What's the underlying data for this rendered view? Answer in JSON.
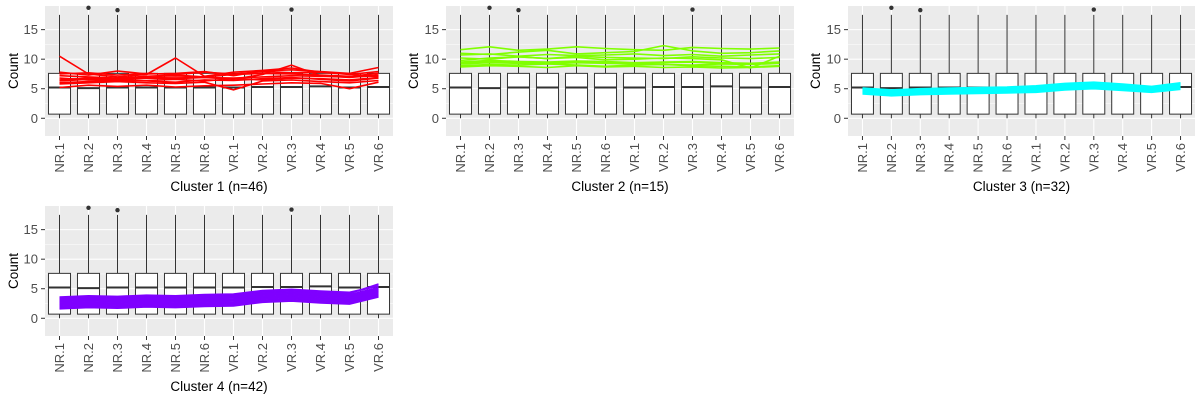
{
  "chart_data": {
    "type": "line",
    "categories": [
      "NR.1",
      "NR.2",
      "NR.3",
      "NR.4",
      "NR.5",
      "NR.6",
      "VR.1",
      "VR.2",
      "VR.3",
      "VR.4",
      "VR.5",
      "VR.6"
    ],
    "ylabel": "Count",
    "ylim": [
      -3,
      19
    ],
    "yticks": [
      0,
      5,
      10,
      15
    ],
    "grid": true,
    "boxes": [
      {
        "q1": 0.7,
        "median": 5.2,
        "q3": 7.6,
        "whisker_low": 0,
        "whisker_high": 17.5
      },
      {
        "q1": 0.7,
        "median": 5.1,
        "q3": 7.6,
        "whisker_low": 0,
        "whisker_high": 17.5,
        "outliers": [
          18.7
        ]
      },
      {
        "q1": 0.7,
        "median": 5.2,
        "q3": 7.6,
        "whisker_low": 0,
        "whisker_high": 17.5,
        "outliers": [
          18.3
        ]
      },
      {
        "q1": 0.7,
        "median": 5.2,
        "q3": 7.6,
        "whisker_low": 0,
        "whisker_high": 17.5
      },
      {
        "q1": 0.7,
        "median": 5.2,
        "q3": 7.6,
        "whisker_low": 0,
        "whisker_high": 17.5
      },
      {
        "q1": 0.7,
        "median": 5.2,
        "q3": 7.6,
        "whisker_low": 0,
        "whisker_high": 17.5
      },
      {
        "q1": 0.7,
        "median": 5.2,
        "q3": 7.6,
        "whisker_low": 0,
        "whisker_high": 17.5
      },
      {
        "q1": 0.7,
        "median": 5.3,
        "q3": 7.6,
        "whisker_low": 0,
        "whisker_high": 17.5
      },
      {
        "q1": 0.7,
        "median": 5.3,
        "q3": 7.6,
        "whisker_low": 0,
        "whisker_high": 17.5,
        "outliers": [
          18.4
        ]
      },
      {
        "q1": 0.7,
        "median": 5.4,
        "q3": 7.6,
        "whisker_low": 0,
        "whisker_high": 17.5
      },
      {
        "q1": 0.7,
        "median": 5.2,
        "q3": 7.6,
        "whisker_low": 0,
        "whisker_high": 17.5
      },
      {
        "q1": 0.7,
        "median": 5.3,
        "q3": 7.6,
        "whisker_low": 0,
        "whisker_high": 17.5
      }
    ],
    "panels": [
      {
        "xlabel": "Cluster 1 (n=46)",
        "color": "#ff0000",
        "series": [
          {
            "values": [
              6.5,
              6.8,
              6.7,
              6.9,
              7.0,
              6.9,
              6.8,
              7.0,
              7.2,
              7.1,
              7.0,
              7.2
            ]
          },
          {
            "values": [
              10.5,
              7.5,
              7.0,
              7.4,
              10.2,
              7.1,
              7.8,
              8.1,
              8.5,
              7.8,
              7.5,
              7.0
            ]
          },
          {
            "values": [
              5.2,
              5.6,
              5.4,
              5.6,
              5.3,
              5.5,
              5.6,
              5.8,
              6.0,
              5.9,
              5.0,
              6.1
            ]
          },
          {
            "values": [
              7.8,
              7.3,
              8.0,
              7.5,
              7.6,
              7.9,
              7.2,
              8.0,
              8.2,
              7.9,
              7.6,
              8.6
            ]
          },
          {
            "values": [
              6.0,
              6.2,
              6.4,
              6.3,
              6.1,
              6.5,
              6.4,
              6.7,
              6.9,
              6.6,
              6.3,
              6.8
            ]
          },
          {
            "values": [
              7.2,
              7.0,
              6.8,
              7.1,
              7.3,
              7.0,
              7.4,
              7.6,
              7.5,
              7.3,
              7.1,
              7.6
            ]
          },
          {
            "values": [
              5.8,
              6.0,
              6.2,
              6.0,
              5.9,
              6.1,
              4.8,
              6.3,
              6.5,
              6.2,
              6.0,
              6.4
            ]
          },
          {
            "values": [
              6.8,
              6.5,
              6.6,
              6.8,
              6.7,
              6.9,
              6.6,
              7.4,
              9.0,
              7.2,
              6.9,
              7.3
            ]
          },
          {
            "values": [
              6.3,
              6.6,
              6.5,
              6.4,
              6.6,
              6.3,
              6.7,
              6.5,
              6.8,
              6.7,
              6.5,
              6.9
            ]
          },
          {
            "values": [
              7.5,
              7.7,
              7.3,
              7.6,
              7.4,
              7.8,
              7.5,
              7.9,
              7.7,
              7.8,
              7.4,
              7.9
            ]
          }
        ]
      },
      {
        "xlabel": "Cluster 2 (n=15)",
        "color": "#80ff00",
        "series": [
          {
            "values": [
              11.6,
              12.1,
              11.5,
              11.7,
              12.1,
              11.8,
              11.6,
              11.5,
              12.0,
              11.8,
              11.7,
              11.9
            ]
          },
          {
            "values": [
              11.0,
              10.8,
              11.2,
              11.5,
              10.9,
              11.1,
              11.3,
              12.3,
              11.4,
              11.0,
              11.1,
              11.4
            ]
          },
          {
            "values": [
              9.5,
              9.8,
              9.6,
              9.5,
              9.7,
              9.6,
              9.4,
              9.5,
              9.6,
              9.4,
              9.3,
              9.5
            ]
          },
          {
            "values": [
              9.2,
              9.4,
              9.3,
              9.2,
              9.4,
              9.3,
              9.2,
              9.1,
              9.0,
              9.2,
              9.1,
              9.3
            ]
          },
          {
            "values": [
              8.9,
              9.1,
              9.0,
              9.2,
              9.0,
              8.8,
              9.0,
              9.1,
              8.9,
              8.8,
              8.7,
              8.9
            ]
          },
          {
            "values": [
              9.8,
              10.2,
              10.4,
              10.1,
              10.3,
              9.9,
              10.0,
              10.2,
              10.1,
              9.9,
              8.5,
              10.5
            ]
          },
          {
            "values": [
              10.7,
              10.9,
              10.5,
              10.8,
              10.6,
              10.7,
              10.9,
              10.6,
              10.8,
              10.5,
              10.7,
              10.9
            ]
          },
          {
            "values": [
              9.3,
              9.6,
              9.5,
              9.4,
              9.6,
              9.5,
              9.3,
              9.4,
              9.5,
              9.3,
              9.2,
              9.4
            ]
          },
          {
            "values": [
              10.2,
              10.0,
              10.4,
              10.1,
              10.5,
              10.3,
              10.2,
              10.1,
              10.4,
              10.2,
              10.1,
              10.3
            ]
          },
          {
            "values": [
              8.7,
              8.9,
              8.8,
              8.6,
              8.9,
              8.7,
              8.8,
              8.6,
              8.7,
              8.5,
              8.6,
              8.8
            ]
          }
        ]
      },
      {
        "xlabel": "Cluster 3 (n=32)",
        "color": "#00ffff",
        "series": [
          {
            "values": [
              4.6,
              4.3,
              4.5,
              4.6,
              4.7,
              4.8,
              4.9,
              5.3,
              5.5,
              5.2,
              4.9,
              5.4
            ]
          },
          {
            "values": [
              4.4,
              4.1,
              4.3,
              4.4,
              4.5,
              4.6,
              4.7,
              5.1,
              5.3,
              5.0,
              4.7,
              5.2
            ]
          },
          {
            "values": [
              4.8,
              4.5,
              4.7,
              4.8,
              4.9,
              5.0,
              5.2,
              5.6,
              5.8,
              5.5,
              5.1,
              5.7
            ]
          },
          {
            "values": [
              4.2,
              3.9,
              4.1,
              4.2,
              4.3,
              4.4,
              4.5,
              4.9,
              5.1,
              4.8,
              4.5,
              5.0
            ]
          },
          {
            "values": [
              5.0,
              4.7,
              4.9,
              5.0,
              5.1,
              5.2,
              5.4,
              5.8,
              6.0,
              5.7,
              5.3,
              5.9
            ]
          },
          {
            "values": [
              4.5,
              4.2,
              4.4,
              4.5,
              4.6,
              4.7,
              4.8,
              5.2,
              5.4,
              5.1,
              4.8,
              5.3
            ]
          },
          {
            "values": [
              4.7,
              4.4,
              4.6,
              4.7,
              4.8,
              4.9,
              5.0,
              5.4,
              5.6,
              5.3,
              5.0,
              5.5
            ]
          },
          {
            "values": [
              4.3,
              4.0,
              4.2,
              4.3,
              4.4,
              4.5,
              4.6,
              5.0,
              5.2,
              4.9,
              4.6,
              5.1
            ]
          },
          {
            "values": [
              4.9,
              4.6,
              4.8,
              4.9,
              5.0,
              5.1,
              5.3,
              5.7,
              5.9,
              5.6,
              5.2,
              5.8
            ]
          },
          {
            "values": [
              4.1,
              3.8,
              4.0,
              4.1,
              4.2,
              4.3,
              4.4,
              4.8,
              5.0,
              4.7,
              4.4,
              4.9
            ]
          },
          {
            "values": [
              4.6,
              4.4,
              4.5,
              4.6,
              4.7,
              4.8,
              5.0,
              5.3,
              5.5,
              5.2,
              4.9,
              5.4
            ]
          },
          {
            "values": [
              5.1,
              4.8,
              5.0,
              5.1,
              5.2,
              5.3,
              5.5,
              5.9,
              6.1,
              5.8,
              5.4,
              6.0
            ]
          }
        ]
      },
      {
        "xlabel": "Cluster 4 (n=42)",
        "color": "#7f00ff",
        "series": [
          {
            "values": [
              3.2,
              3.4,
              3.3,
              3.5,
              3.4,
              3.6,
              3.7,
              4.3,
              4.5,
              4.2,
              4.0,
              5.2
            ]
          },
          {
            "values": [
              2.8,
              3.0,
              2.9,
              3.1,
              3.0,
              3.2,
              3.3,
              3.9,
              4.1,
              3.8,
              3.6,
              4.8
            ]
          },
          {
            "values": [
              3.6,
              3.8,
              3.7,
              3.9,
              3.8,
              4.0,
              4.1,
              4.7,
              4.9,
              4.6,
              4.4,
              5.5
            ]
          },
          {
            "values": [
              2.4,
              2.6,
              2.5,
              2.7,
              2.6,
              2.8,
              2.9,
              3.5,
              3.7,
              3.4,
              3.2,
              4.4
            ]
          },
          {
            "values": [
              2.0,
              2.2,
              2.1,
              2.3,
              2.2,
              2.4,
              2.5,
              3.1,
              3.3,
              3.0,
              2.8,
              4.0
            ]
          },
          {
            "values": [
              1.6,
              1.8,
              1.7,
              1.9,
              1.8,
              2.0,
              2.1,
              2.7,
              2.9,
              2.6,
              2.4,
              3.6
            ]
          },
          {
            "values": [
              3.4,
              3.6,
              3.5,
              3.7,
              3.6,
              3.8,
              3.9,
              4.5,
              4.7,
              4.4,
              4.2,
              5.8
            ]
          },
          {
            "values": [
              3.0,
              3.2,
              3.1,
              3.3,
              3.2,
              3.4,
              3.5,
              4.1,
              4.3,
              4.0,
              3.8,
              5.0
            ]
          },
          {
            "values": [
              2.6,
              2.8,
              2.7,
              2.9,
              2.8,
              3.0,
              3.1,
              3.7,
              3.9,
              3.6,
              3.4,
              4.6
            ]
          },
          {
            "values": [
              2.2,
              2.4,
              2.3,
              2.5,
              2.4,
              2.6,
              2.7,
              3.3,
              3.5,
              3.2,
              3.0,
              4.2
            ]
          },
          {
            "values": [
              1.8,
              2.0,
              1.9,
              2.1,
              2.0,
              2.2,
              2.3,
              2.9,
              3.1,
              2.8,
              2.6,
              3.8
            ]
          },
          {
            "values": [
              3.5,
              3.7,
              3.6,
              3.8,
              3.7,
              3.9,
              4.0,
              4.6,
              4.8,
              4.5,
              4.3,
              5.5
            ]
          }
        ]
      }
    ]
  }
}
